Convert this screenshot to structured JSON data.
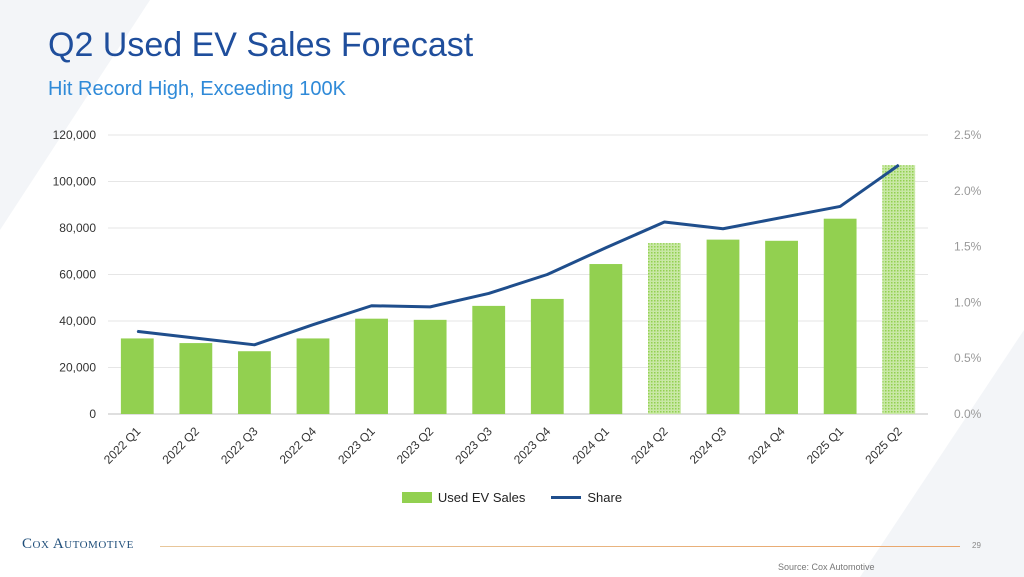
{
  "slide": {
    "title": "Q2 Used EV Sales Forecast",
    "subtitle": "Hit Record High, Exceeding 100K",
    "brand": "Cox Automotive",
    "page_number": "29",
    "source": "Source: Cox Automotive"
  },
  "colors": {
    "bar": "#92d050",
    "line": "#1f4e8c",
    "title": "#1f4e9c",
    "subtitle": "#2f8ad8",
    "grid": "#e6e6e6"
  },
  "chart_data": {
    "type": "bar",
    "title": "",
    "xlabel": "",
    "ylabel": "",
    "categories": [
      "2022 Q1",
      "2022 Q2",
      "2022 Q3",
      "2022 Q4",
      "2023 Q1",
      "2023 Q2",
      "2023 Q3",
      "2023 Q4",
      "2024 Q1",
      "2024 Q2",
      "2024 Q3",
      "2024 Q4",
      "2025 Q1",
      "2025 Q2"
    ],
    "series": [
      {
        "name": "Used EV Sales",
        "kind": "bar",
        "axis": "left",
        "values": [
          32500,
          30500,
          27000,
          32500,
          41000,
          40500,
          46500,
          49500,
          64500,
          73500,
          75000,
          74500,
          84000,
          107000
        ],
        "pattern_flags": [
          false,
          false,
          false,
          false,
          false,
          false,
          false,
          false,
          false,
          true,
          false,
          false,
          false,
          true
        ]
      },
      {
        "name": "Share",
        "kind": "line",
        "axis": "right",
        "values": [
          0.74,
          0.68,
          0.62,
          0.8,
          0.97,
          0.96,
          1.08,
          1.25,
          1.49,
          1.72,
          1.66,
          1.76,
          1.86,
          2.23
        ]
      }
    ],
    "ylim": [
      0,
      120000
    ],
    "y_ticks": [
      "0",
      "20,000",
      "40,000",
      "60,000",
      "80,000",
      "100,000",
      "120,000"
    ],
    "y2lim": [
      0,
      2.5
    ],
    "y2_ticks": [
      "0.0%",
      "0.5%",
      "1.0%",
      "1.5%",
      "2.0%",
      "2.5%"
    ],
    "grid": true,
    "legend": [
      "Used EV Sales",
      "Share"
    ],
    "legend_position": "bottom"
  }
}
